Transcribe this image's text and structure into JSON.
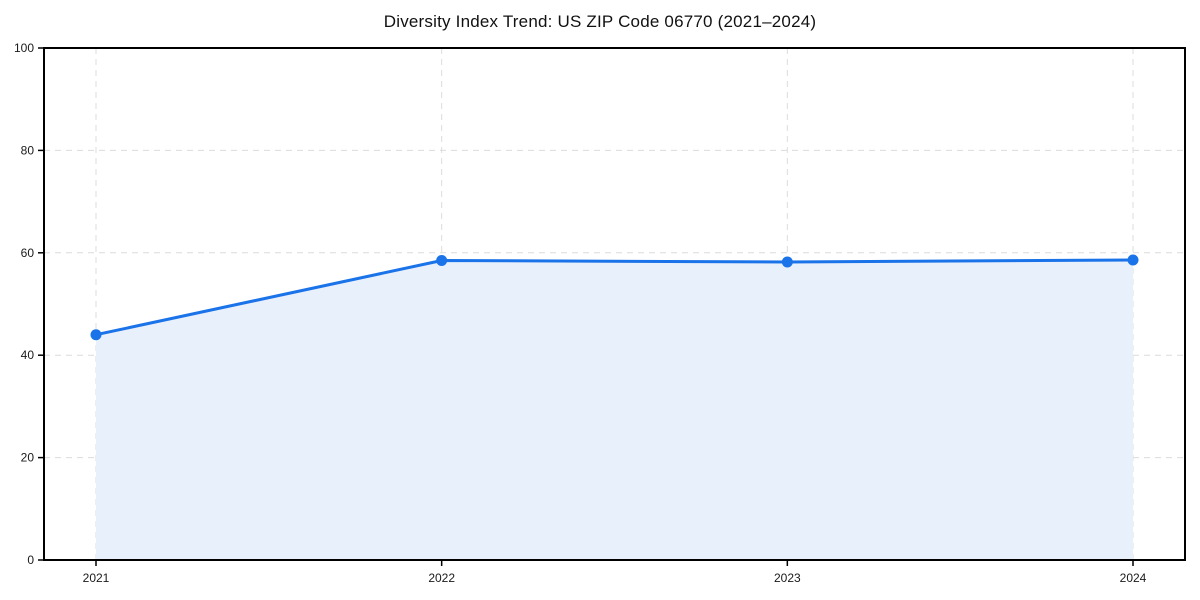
{
  "page": {
    "background": "#ffffff"
  },
  "chart_data": {
    "type": "area",
    "title": "Diversity Index Trend: US ZIP Code 06770 (2021–2024)",
    "x": [
      "2021",
      "2022",
      "2023",
      "2024"
    ],
    "values": [
      44.0,
      58.5,
      58.2,
      58.6
    ],
    "xlabel": "",
    "ylabel": "",
    "ylim": [
      0,
      100
    ],
    "yticks": [
      0,
      20,
      40,
      60,
      80,
      100
    ],
    "grid": "dashed",
    "legend": "none",
    "colors": {
      "line": "#1a73e8",
      "marker": "#1a73e8",
      "fill": "#e8f0fc",
      "grid": "#dcdcdc",
      "axis": "#000000",
      "tick_text": "#1a1a1a"
    }
  }
}
